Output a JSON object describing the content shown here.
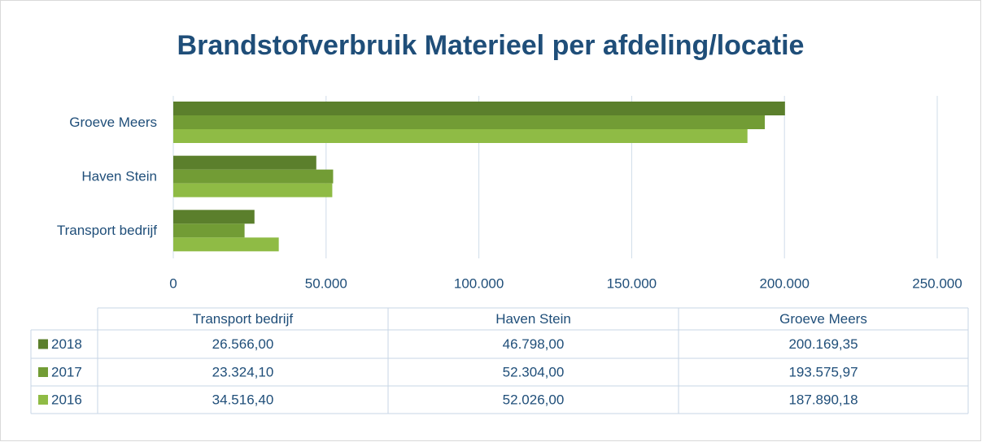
{
  "chart_data": {
    "type": "hbar",
    "title": "Brandstofverbruik Materieel per afdeling/locatie",
    "categories": [
      "Transport bedrijf",
      "Haven Stein",
      "Groeve Meers"
    ],
    "series": [
      {
        "name": "2018",
        "color": "#5b7f2c",
        "values": [
          26566,
          46798,
          200169.35
        ],
        "value_labels": [
          "26.566,00",
          "46.798,00",
          "200.169,35"
        ]
      },
      {
        "name": "2017",
        "color": "#729c35",
        "values": [
          23324.1,
          52304,
          193575.97
        ],
        "value_labels": [
          "23.324,10",
          "52.304,00",
          "193.575,97"
        ]
      },
      {
        "name": "2016",
        "color": "#8fbb45",
        "values": [
          34516.4,
          52026,
          187890.18
        ],
        "value_labels": [
          "34.516,40",
          "52.026,00",
          "187.890,18"
        ]
      }
    ],
    "xlim": [
      0,
      250000
    ],
    "xticks": [
      0,
      {
        "value": 50000,
        "label": "50.000"
      },
      {
        "value": 100000,
        "label": "100.000"
      },
      {
        "value": 150000,
        "label": "150.000"
      },
      {
        "value": 200000,
        "label": "200.000"
      },
      {
        "value": 250000,
        "label": "250.000"
      }
    ],
    "grid": true,
    "data_table": true
  }
}
